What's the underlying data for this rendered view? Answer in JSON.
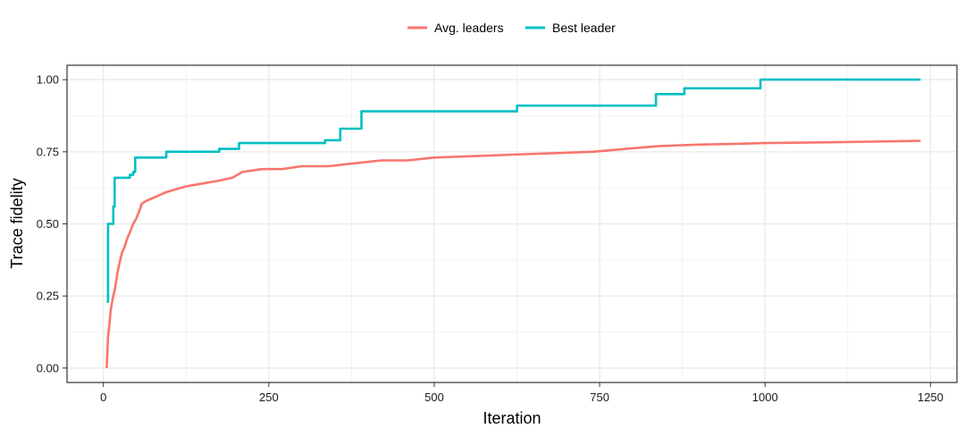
{
  "chart_data": {
    "type": "line",
    "xlabel": "Iteration",
    "ylabel": "Trace fidelity",
    "xlim": [
      -55,
      1290
    ],
    "ylim": [
      -0.05,
      1.05
    ],
    "x_ticks": [
      0,
      250,
      500,
      750,
      1000,
      1250
    ],
    "x_tick_labels": [
      "0",
      "250",
      "500",
      "750",
      "1000",
      "1250"
    ],
    "y_ticks": [
      0,
      0.25,
      0.5,
      0.75,
      1.0
    ],
    "y_tick_labels": [
      "0.00",
      "0.25",
      "0.50",
      "0.75",
      "1.00"
    ],
    "grid": true,
    "legend_position": "top",
    "series": [
      {
        "name": "Avg. leaders",
        "color": "#F8766D",
        "step": false,
        "points": [
          [
            5,
            0.0
          ],
          [
            6,
            0.06
          ],
          [
            7,
            0.11
          ],
          [
            9,
            0.15
          ],
          [
            11,
            0.2
          ],
          [
            14,
            0.24
          ],
          [
            17,
            0.27
          ],
          [
            20,
            0.31
          ],
          [
            22,
            0.34
          ],
          [
            25,
            0.37
          ],
          [
            28,
            0.4
          ],
          [
            32,
            0.42
          ],
          [
            36,
            0.45
          ],
          [
            40,
            0.47
          ],
          [
            45,
            0.5
          ],
          [
            50,
            0.52
          ],
          [
            55,
            0.55
          ],
          [
            58,
            0.57
          ],
          [
            65,
            0.58
          ],
          [
            75,
            0.59
          ],
          [
            85,
            0.6
          ],
          [
            95,
            0.61
          ],
          [
            110,
            0.62
          ],
          [
            125,
            0.63
          ],
          [
            150,
            0.64
          ],
          [
            175,
            0.65
          ],
          [
            195,
            0.66
          ],
          [
            210,
            0.68
          ],
          [
            240,
            0.69
          ],
          [
            270,
            0.69
          ],
          [
            300,
            0.7
          ],
          [
            340,
            0.7
          ],
          [
            380,
            0.71
          ],
          [
            420,
            0.72
          ],
          [
            460,
            0.72
          ],
          [
            500,
            0.73
          ],
          [
            560,
            0.735
          ],
          [
            620,
            0.74
          ],
          [
            680,
            0.745
          ],
          [
            740,
            0.75
          ],
          [
            790,
            0.76
          ],
          [
            840,
            0.77
          ],
          [
            900,
            0.775
          ],
          [
            950,
            0.777
          ],
          [
            1000,
            0.78
          ],
          [
            1100,
            0.783
          ],
          [
            1160,
            0.785
          ],
          [
            1235,
            0.788
          ]
        ]
      },
      {
        "name": "Best leader",
        "color": "#00BFC4",
        "step": true,
        "points": [
          [
            5,
            0.23
          ],
          [
            7,
            0.5
          ],
          [
            15,
            0.56
          ],
          [
            17,
            0.66
          ],
          [
            40,
            0.67
          ],
          [
            45,
            0.68
          ],
          [
            48,
            0.73
          ],
          [
            95,
            0.75
          ],
          [
            175,
            0.76
          ],
          [
            205,
            0.78
          ],
          [
            335,
            0.79
          ],
          [
            358,
            0.83
          ],
          [
            390,
            0.89
          ],
          [
            625,
            0.91
          ],
          [
            835,
            0.95
          ],
          [
            878,
            0.97
          ],
          [
            993,
            1.0
          ],
          [
            1235,
            1.0
          ]
        ]
      }
    ]
  }
}
